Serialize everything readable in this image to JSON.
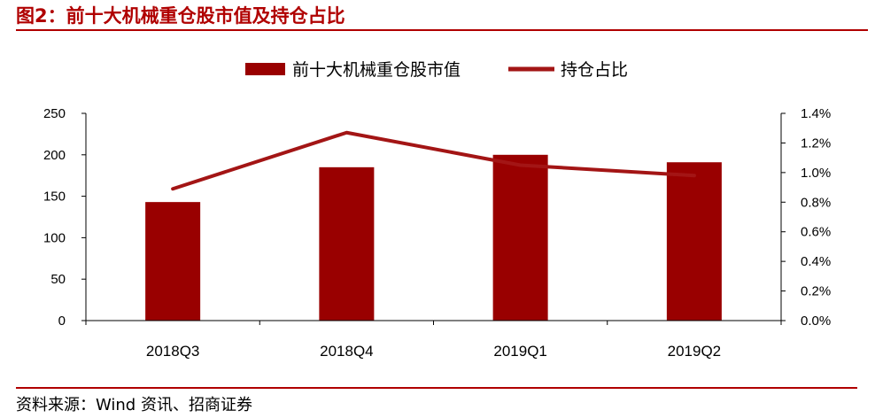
{
  "header": {
    "title": "图2：前十大机械重仓股市值及持仓占比"
  },
  "footer": {
    "source": "资料来源：Wind 资讯、招商证券"
  },
  "colors": {
    "accent": "#b00000",
    "bar": "#990000",
    "line": "#a31515",
    "axis": "#000000"
  },
  "chart_data": {
    "type": "bar",
    "title": "",
    "categories": [
      "2018Q3",
      "2018Q4",
      "2019Q1",
      "2019Q2"
    ],
    "series": [
      {
        "name": "前十大机械重仓股市值",
        "type": "bar",
        "axis": "left",
        "values": [
          143,
          185,
          200,
          191
        ]
      },
      {
        "name": "持仓占比",
        "type": "line",
        "axis": "right",
        "values": [
          0.0089,
          0.0127,
          0.0105,
          0.0098
        ]
      }
    ],
    "left_axis": {
      "ylim": [
        0,
        250
      ],
      "ticks": [
        0,
        50,
        100,
        150,
        200,
        250
      ],
      "tick_labels": [
        "0",
        "50",
        "100",
        "150",
        "200",
        "250"
      ]
    },
    "right_axis": {
      "ylim": [
        0,
        0.014
      ],
      "ticks": [
        0,
        0.002,
        0.004,
        0.006,
        0.008,
        0.01,
        0.012,
        0.014
      ],
      "tick_labels": [
        "0.0%",
        "0.2%",
        "0.4%",
        "0.6%",
        "0.8%",
        "1.0%",
        "1.2%",
        "1.4%"
      ]
    },
    "legend": "top-center",
    "grid": false
  }
}
